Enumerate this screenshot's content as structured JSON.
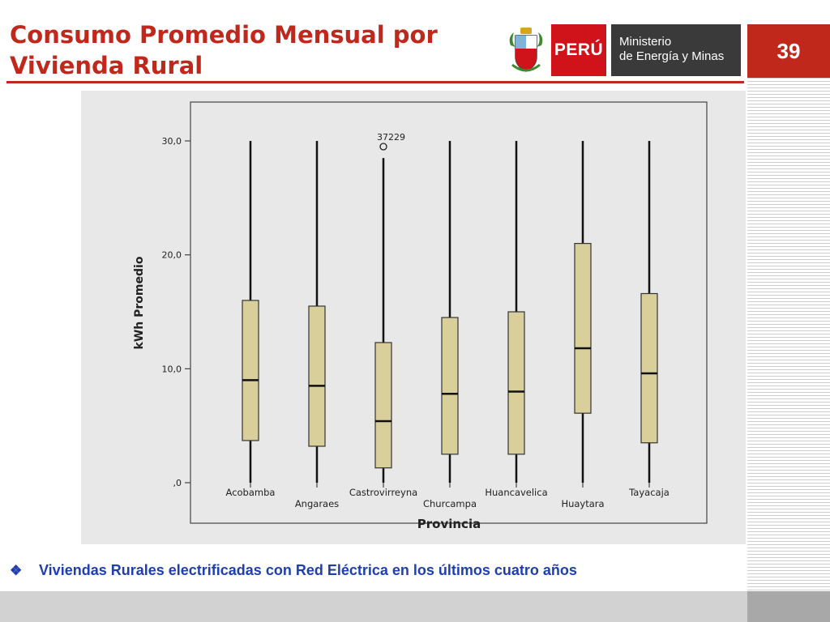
{
  "header": {
    "title_line1": "Consumo Promedio Mensual por",
    "title_line2": "Vivienda Rural",
    "page_number": "39"
  },
  "logo": {
    "country_label": "PERÚ",
    "ministry_line1": "Ministerio",
    "ministry_line2": "de Energía y Minas",
    "emblem_icon": "peru-coat-of-arms-icon"
  },
  "bullet": {
    "icon": "diamond-bullet-icon",
    "text": "Viviendas Rurales electrificadas con  Red Eléctrica en los últimos cuatro años"
  },
  "colors": {
    "title_red": "#c0281c",
    "bullet_blue": "#1f3fae",
    "box_fill": "#d9cf9a",
    "plot_bg": "#e8e8e8"
  },
  "chart_data": {
    "type": "boxplot",
    "xlabel": "Provincia",
    "ylabel": "kWh Promedio",
    "ylim": [
      0,
      31.5
    ],
    "yticks": [
      {
        "value": 0,
        "label": ",0"
      },
      {
        "value": 10,
        "label": "10,0"
      },
      {
        "value": 20,
        "label": "20,0"
      },
      {
        "value": 30,
        "label": "30,0"
      }
    ],
    "grid": false,
    "boxes": [
      {
        "category": "Acobamba",
        "min": 0,
        "q1": 3.7,
        "median": 9.0,
        "q3": 16.0,
        "max": 30.0
      },
      {
        "category": "Angaraes",
        "min": 0,
        "q1": 3.2,
        "median": 8.5,
        "q3": 15.5,
        "max": 30.0
      },
      {
        "category": "Castrovirreyna",
        "min": 0,
        "q1": 1.3,
        "median": 5.4,
        "q3": 12.3,
        "max": 28.5,
        "outliers": [
          {
            "value": 29.5,
            "label": "37229"
          }
        ]
      },
      {
        "category": "Churcampa",
        "min": 0,
        "q1": 2.5,
        "median": 7.8,
        "q3": 14.5,
        "max": 30.0
      },
      {
        "category": "Huancavelica",
        "min": 0,
        "q1": 2.5,
        "median": 8.0,
        "q3": 15.0,
        "max": 30.0
      },
      {
        "category": "Huaytara",
        "min": 0,
        "q1": 6.1,
        "median": 11.8,
        "q3": 21.0,
        "max": 30.0
      },
      {
        "category": "Tayacaja",
        "min": 0,
        "q1": 3.5,
        "median": 9.6,
        "q3": 16.6,
        "max": 30.0
      }
    ]
  }
}
